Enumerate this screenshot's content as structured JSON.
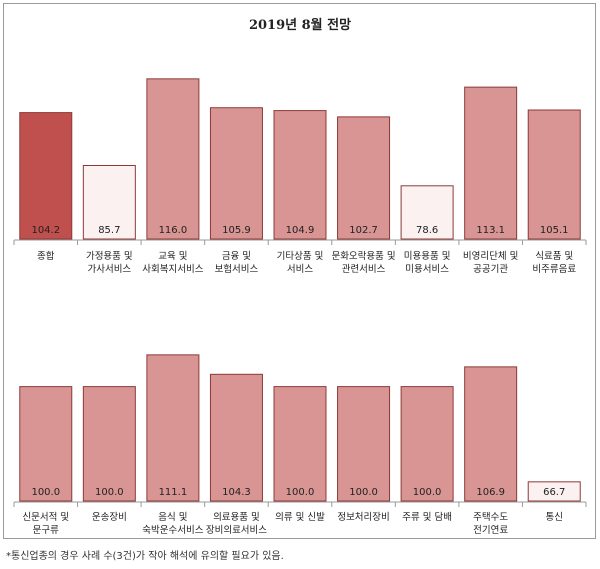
{
  "title": "2019년 8월 전망",
  "footnote": "*통신업종의 경우 사례 수(3건)가 작아 해석에 유의할 필요가 있음.",
  "colors": {
    "highlight": "#c0504d",
    "normal": "#d99594",
    "low": "#fbf1f1",
    "edge": "#8c3a38"
  },
  "chart_data": [
    {
      "type": "bar",
      "ylim": [
        60,
        125
      ],
      "categories": [
        [
          "종합"
        ],
        [
          "가정용품 및",
          "가사서비스"
        ],
        [
          "교육 및",
          "사회복지서비스"
        ],
        [
          "금융 및",
          "보험서비스"
        ],
        [
          "기타상품 및",
          "서비스"
        ],
        [
          "문화오락용품 및",
          "관련서비스"
        ],
        [
          "미용용품 및",
          "미용서비스"
        ],
        [
          "비영리단체 및",
          "공공기관"
        ],
        [
          "식료품 및",
          "비주류음료"
        ]
      ],
      "values": [
        104.2,
        85.7,
        116.0,
        105.9,
        104.9,
        102.7,
        78.6,
        113.1,
        105.1
      ],
      "labels": [
        "104.2",
        "85.7",
        "116.0",
        "105.9",
        "104.9",
        "102.7",
        "78.6",
        "113.1",
        "105.1"
      ],
      "styles": [
        "highlight",
        "low",
        "normal",
        "normal",
        "normal",
        "normal",
        "low",
        "normal",
        "normal"
      ]
    },
    {
      "type": "bar",
      "ylim": [
        60,
        125
      ],
      "categories": [
        [
          "신문서적 및",
          "문구류"
        ],
        [
          "운송장비"
        ],
        [
          "음식 및",
          "숙박운수서비스"
        ],
        [
          "의료용품 및",
          "장비의료서비스"
        ],
        [
          "의류 및 신발"
        ],
        [
          "정보처리장비"
        ],
        [
          "주류 및 담배"
        ],
        [
          "주택수도",
          "전기연료"
        ],
        [
          "통신"
        ]
      ],
      "values": [
        100.0,
        100.0,
        111.1,
        104.3,
        100.0,
        100.0,
        100.0,
        106.9,
        66.7
      ],
      "labels": [
        "100.0",
        "100.0",
        "111.1",
        "104.3",
        "100.0",
        "100.0",
        "100.0",
        "106.9",
        "66.7"
      ],
      "styles": [
        "normal",
        "normal",
        "normal",
        "normal",
        "normal",
        "normal",
        "normal",
        "normal",
        "low"
      ]
    }
  ]
}
